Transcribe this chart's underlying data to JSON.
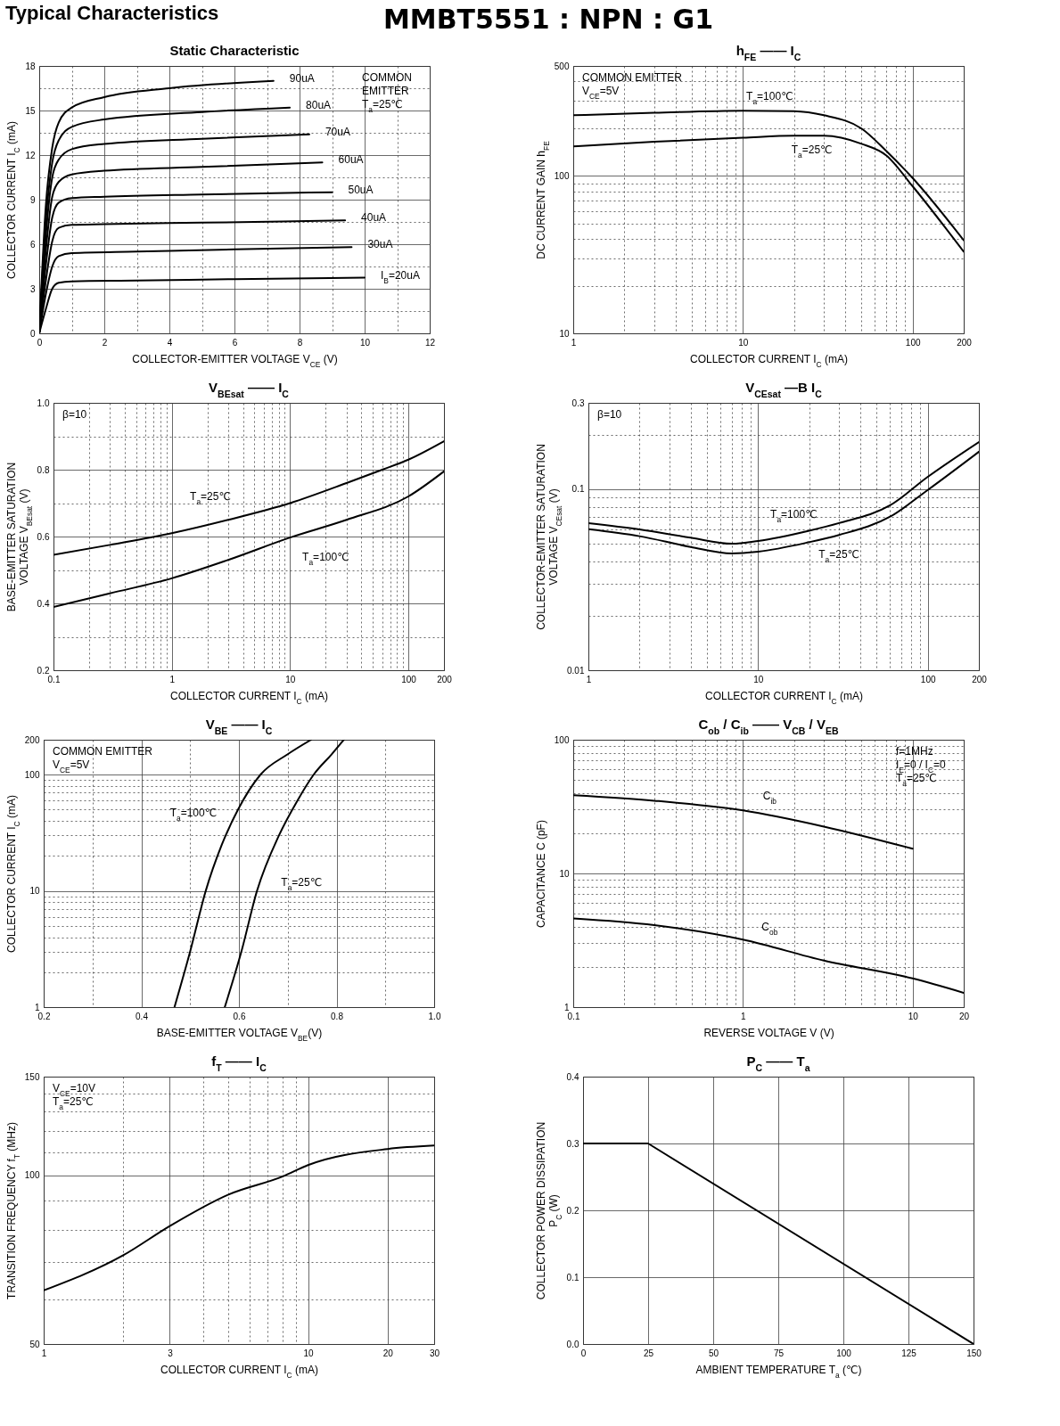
{
  "chart_data": [
    {
      "type": "other",
      "title": "Typical Characteristics",
      "subtitle": "MMBT5551 : NPN : G1"
    },
    {
      "type": "line",
      "title": "Static Characteristic",
      "xlabel": "COLLECTOR-EMITTER VOLTAGE V$_{CE}$ (V)",
      "ylabel": "COLLECTOR CURRENT I$_{C}$ (mA)",
      "xlim": [
        0,
        12
      ],
      "ylim": [
        0,
        18
      ],
      "xticks": [
        0,
        {
          "value": 1,
          "label": null
        },
        2,
        {
          "value": 3,
          "label": null
        },
        4,
        {
          "value": 5,
          "label": null
        },
        6,
        {
          "value": 7,
          "label": null
        },
        8,
        {
          "value": 9,
          "label": null
        },
        10,
        {
          "value": 11,
          "label": null
        },
        12
      ],
      "yticks": [
        0,
        {
          "value": 1.5,
          "label": null
        },
        3,
        {
          "value": 4.5,
          "label": null
        },
        6,
        {
          "value": 7.5,
          "label": null
        },
        9,
        {
          "value": 10.5,
          "label": null
        },
        12,
        {
          "value": 13.5,
          "label": null
        },
        15,
        {
          "value": 16.5,
          "label": null
        },
        18
      ],
      "grid": true,
      "annotations": [
        "COMMON",
        "EMITTER",
        "T$_{a}$=25℃"
      ],
      "series": [
        {
          "name": "I$_{B}$=20uA",
          "color": "#000000",
          "x": [
            0,
            0.2,
            0.4,
            0.6,
            1,
            3,
            6,
            10
          ],
          "values": [
            0,
            1.6,
            3.0,
            3.4,
            3.5,
            3.55,
            3.65,
            3.75
          ]
        },
        {
          "name": "30uA",
          "color": "#000000",
          "x": [
            0,
            0.2,
            0.4,
            0.6,
            1,
            3,
            6,
            9.6
          ],
          "values": [
            0,
            2.6,
            4.5,
            5.2,
            5.4,
            5.5,
            5.65,
            5.8
          ]
        },
        {
          "name": "40uA",
          "color": "#000000",
          "x": [
            0,
            0.2,
            0.4,
            0.6,
            1,
            2,
            5,
            9.4
          ],
          "values": [
            0,
            3.5,
            6.2,
            7.1,
            7.3,
            7.35,
            7.45,
            7.6
          ]
        },
        {
          "name": "50uA",
          "color": "#000000",
          "x": [
            0,
            0.2,
            0.4,
            0.6,
            1,
            2,
            5,
            9
          ],
          "values": [
            0,
            4.5,
            7.8,
            8.8,
            9.1,
            9.2,
            9.35,
            9.5
          ]
        },
        {
          "name": "60uA",
          "color": "#000000",
          "x": [
            0,
            0.2,
            0.4,
            0.6,
            1,
            2,
            5,
            8.7
          ],
          "values": [
            0,
            5.5,
            9.2,
            10.2,
            10.7,
            10.95,
            11.2,
            11.5
          ]
        },
        {
          "name": "70uA",
          "color": "#000000",
          "x": [
            0,
            0.2,
            0.4,
            0.6,
            1,
            2,
            5,
            8.3
          ],
          "values": [
            0,
            6.5,
            10.5,
            11.7,
            12.4,
            12.75,
            13.1,
            13.4
          ]
        },
        {
          "name": "80uA",
          "color": "#000000",
          "x": [
            0,
            0.2,
            0.4,
            0.6,
            1,
            2,
            5,
            7.7
          ],
          "values": [
            0,
            7.5,
            11.5,
            13.0,
            13.9,
            14.4,
            14.9,
            15.2
          ]
        },
        {
          "name": "90uA",
          "color": "#000000",
          "x": [
            0,
            0.2,
            0.4,
            0.6,
            1,
            2,
            4,
            7.2
          ],
          "values": [
            0,
            8.5,
            12.5,
            14.2,
            15.2,
            15.9,
            16.5,
            17.0
          ]
        }
      ]
    },
    {
      "type": "line",
      "title": "h$_{FE}$ —— I$_{C}$",
      "xlabel": "COLLECTOR CURRENT I$_{C}$ (mA)",
      "ylabel": "DC CURRENT GAIN h$_{FE}$",
      "log": "xy",
      "xlim": [
        1,
        200
      ],
      "ylim": [
        10,
        500
      ],
      "xticks": [
        1,
        {
          "value": 2,
          "label": null
        },
        {
          "value": 3,
          "label": null
        },
        {
          "value": 4,
          "label": null
        },
        {
          "value": 5,
          "label": null
        },
        {
          "value": 6,
          "label": null
        },
        {
          "value": 7,
          "label": null
        },
        {
          "value": 8,
          "label": null
        },
        {
          "value": 9,
          "label": null
        },
        10,
        {
          "value": 20,
          "label": null
        },
        {
          "value": 30,
          "label": null
        },
        {
          "value": 40,
          "label": null
        },
        {
          "value": 50,
          "label": null
        },
        {
          "value": 60,
          "label": null
        },
        {
          "value": 70,
          "label": null
        },
        {
          "value": 80,
          "label": null
        },
        {
          "value": 90,
          "label": null
        },
        100,
        200
      ],
      "yticks": [
        10,
        {
          "value": 20,
          "label": null
        },
        {
          "value": 30,
          "label": null
        },
        {
          "value": 40,
          "label": null
        },
        {
          "value": 50,
          "label": null
        },
        {
          "value": 60,
          "label": null
        },
        {
          "value": 70,
          "label": null
        },
        {
          "value": 80,
          "label": null
        },
        {
          "value": 90,
          "label": null
        },
        100,
        {
          "value": 200,
          "label": null
        },
        {
          "value": 300,
          "label": null
        },
        {
          "value": 400,
          "label": null
        },
        500
      ],
      "grid": true,
      "annotations": [
        "COMMON EMITTER",
        "V$_{CE}$=5V"
      ],
      "series": [
        {
          "name": "T$_{a}$=100℃",
          "color": "#000000",
          "x": [
            1,
            3,
            10,
            20,
            30,
            50,
            70,
            100,
            200
          ],
          "values": [
            243,
            252,
            260,
            258,
            243,
            200,
            144,
            97,
            39
          ]
        },
        {
          "name": "T$_{a}$=25℃",
          "color": "#000000",
          "x": [
            1,
            3,
            10,
            20,
            30,
            50,
            70,
            100,
            200
          ],
          "values": [
            154,
            165,
            175,
            180,
            180,
            160,
            135,
            86,
            33
          ]
        }
      ]
    },
    {
      "type": "line",
      "title": "V$_{BEsat}$ —— I$_{C}$",
      "xlabel": "COLLECTOR CURRENT I$_{C}$ (mA)",
      "ylabel": "BASE-EMITTER SATURATION\nVOLTAGE V$_{BEsat}$ (V)",
      "log": "x",
      "xlim": [
        0.1,
        200
      ],
      "ylim": [
        0.2,
        1.0
      ],
      "xticks": [
        0.1,
        {
          "value": 0.2,
          "label": null
        },
        {
          "value": 0.3,
          "label": null
        },
        {
          "value": 0.4,
          "label": null
        },
        {
          "value": 0.5,
          "label": null
        },
        {
          "value": 0.6,
          "label": null
        },
        {
          "value": 0.7,
          "label": null
        },
        {
          "value": 0.8,
          "label": null
        },
        {
          "value": 0.9,
          "label": null
        },
        1,
        {
          "value": 2,
          "label": null
        },
        {
          "value": 3,
          "label": null
        },
        {
          "value": 4,
          "label": null
        },
        {
          "value": 5,
          "label": null
        },
        {
          "value": 6,
          "label": null
        },
        {
          "value": 7,
          "label": null
        },
        {
          "value": 8,
          "label": null
        },
        {
          "value": 9,
          "label": null
        },
        10,
        {
          "value": 20,
          "label": null
        },
        {
          "value": 30,
          "label": null
        },
        {
          "value": 40,
          "label": null
        },
        {
          "value": 50,
          "label": null
        },
        {
          "value": 60,
          "label": null
        },
        {
          "value": 70,
          "label": null
        },
        {
          "value": 80,
          "label": null
        },
        {
          "value": 90,
          "label": null
        },
        100,
        200
      ],
      "yticks": [
        0.2,
        {
          "value": 0.3,
          "label": null
        },
        0.4,
        {
          "value": 0.5,
          "label": null
        },
        0.6,
        {
          "value": 0.7,
          "label": null
        },
        0.8,
        {
          "value": 0.9,
          "label": null
        },
        {
          "value": 1,
          "label": "1.0"
        }
      ],
      "grid": true,
      "annotations": [
        "β=10"
      ],
      "series": [
        {
          "name": "T$_{a}$=25℃",
          "color": "#000000",
          "x": [
            0.1,
            0.3,
            1,
            3,
            10,
            30,
            60,
            100,
            200
          ],
          "values": [
            0.545,
            0.575,
            0.61,
            0.65,
            0.7,
            0.76,
            0.8,
            0.83,
            0.885
          ]
        },
        {
          "name": "T$_{a}$=100℃",
          "color": "#000000",
          "x": [
            0.1,
            0.3,
            1,
            3,
            10,
            30,
            100,
            200
          ],
          "values": [
            0.389,
            0.43,
            0.475,
            0.53,
            0.597,
            0.65,
            0.72,
            0.795
          ]
        }
      ]
    },
    {
      "type": "line",
      "title": "V$_{CEsat}$ —B I$_{C}$",
      "xlabel": "COLLECTOR CURRENT I$_{C}$ (mA)",
      "ylabel": "COLLECTOR-EMITTER SATURATION\nVOLTAGE V$_{CEsat}$ (V)",
      "log": "xy",
      "xlim": [
        1,
        200
      ],
      "ylim": [
        0.01,
        0.3
      ],
      "xticks": [
        1,
        {
          "value": 2,
          "label": null
        },
        {
          "value": 3,
          "label": null
        },
        {
          "value": 4,
          "label": null
        },
        {
          "value": 5,
          "label": null
        },
        {
          "value": 6,
          "label": null
        },
        {
          "value": 7,
          "label": null
        },
        {
          "value": 8,
          "label": null
        },
        {
          "value": 9,
          "label": null
        },
        10,
        {
          "value": 20,
          "label": null
        },
        {
          "value": 30,
          "label": null
        },
        {
          "value": 40,
          "label": null
        },
        {
          "value": 50,
          "label": null
        },
        {
          "value": 60,
          "label": null
        },
        {
          "value": 70,
          "label": null
        },
        {
          "value": 80,
          "label": null
        },
        {
          "value": 90,
          "label": null
        },
        100,
        200
      ],
      "yticks": [
        0.01,
        {
          "value": 0.02,
          "label": null
        },
        {
          "value": 0.03,
          "label": null
        },
        {
          "value": 0.04,
          "label": null
        },
        {
          "value": 0.05,
          "label": null
        },
        {
          "value": 0.06,
          "label": null
        },
        {
          "value": 0.07,
          "label": null
        },
        {
          "value": 0.08,
          "label": null
        },
        {
          "value": 0.09,
          "label": null
        },
        0.1,
        {
          "value": 0.2,
          "label": null
        },
        0.3
      ],
      "grid": true,
      "annotations": [
        "β=10"
      ],
      "series": [
        {
          "name": "T$_{a}$=100℃",
          "color": "#000000",
          "x": [
            1,
            2,
            4,
            7,
            10,
            20,
            30,
            60,
            100,
            200
          ],
          "values": [
            0.065,
            0.06,
            0.054,
            0.05,
            0.0518,
            0.059,
            0.065,
            0.0815,
            0.117,
            0.182
          ]
        },
        {
          "name": "T$_{a}$=25℃",
          "color": "#000000",
          "x": [
            1,
            2,
            4,
            7,
            10,
            20,
            30,
            60,
            100,
            200
          ],
          "values": [
            0.0601,
            0.055,
            0.048,
            0.0442,
            0.0452,
            0.051,
            0.0559,
            0.0705,
            0.0991,
            0.161
          ]
        }
      ]
    },
    {
      "type": "line",
      "title": "V$_{BE}$ —— I$_{C}$",
      "xlabel": "BASE-EMITTER VOLTAGE V$_{BE}$(V)",
      "ylabel": "COLLECTOR CURRENT I$_{C}$ (mA)",
      "log": "y",
      "xlim": [
        0.2,
        1.0
      ],
      "ylim": [
        1,
        200
      ],
      "xticks": [
        0.2,
        {
          "value": 0.3,
          "label": null
        },
        0.4,
        {
          "value": 0.5,
          "label": null
        },
        0.6,
        {
          "value": 0.7,
          "label": null
        },
        0.8,
        {
          "value": 0.9,
          "label": null
        },
        {
          "value": 1,
          "label": "1.0"
        }
      ],
      "yticks": [
        1,
        {
          "value": 2,
          "label": null
        },
        {
          "value": 3,
          "label": null
        },
        {
          "value": 4,
          "label": null
        },
        {
          "value": 5,
          "label": null
        },
        {
          "value": 6,
          "label": null
        },
        {
          "value": 7,
          "label": null
        },
        {
          "value": 8,
          "label": null
        },
        {
          "value": 9,
          "label": null
        },
        10,
        {
          "value": 20,
          "label": null
        },
        {
          "value": 30,
          "label": null
        },
        {
          "value": 40,
          "label": null
        },
        {
          "value": 50,
          "label": null
        },
        {
          "value": 60,
          "label": null
        },
        {
          "value": 70,
          "label": null
        },
        {
          "value": 80,
          "label": null
        },
        {
          "value": 90,
          "label": null
        },
        100,
        200
      ],
      "grid": true,
      "annotations": [
        "COMMON EMITTER",
        "V$_{CE}$=5V"
      ],
      "series": [
        {
          "name": "T$_{a}$=100℃",
          "color": "#000000",
          "x": [
            0.468,
            0.5,
            0.532,
            0.565,
            0.598,
            0.644,
            0.7,
            0.748
          ],
          "values": [
            1,
            3,
            10,
            25,
            50,
            100,
            150,
            200
          ]
        },
        {
          "name": "T$_{a}$=25℃",
          "color": "#000000",
          "x": [
            0.571,
            0.605,
            0.637,
            0.682,
            0.72,
            0.753,
            0.79,
            0.815
          ],
          "values": [
            1,
            3,
            10,
            30,
            60,
            100,
            150,
            200
          ]
        }
      ]
    },
    {
      "type": "line",
      "title": "C$_{ob}$ / C$_{ib}$ —— V$_{CB}$ / V$_{EB}$",
      "xlabel": "REVERSE VOLTAGE V (V)",
      "ylabel": "CAPACITANCE C (pF)",
      "log": "xy",
      "xlim": [
        0.1,
        20
      ],
      "ylim": [
        1,
        100
      ],
      "xticks": [
        0.1,
        {
          "value": 0.2,
          "label": null
        },
        {
          "value": 0.3,
          "label": null
        },
        {
          "value": 0.4,
          "label": null
        },
        {
          "value": 0.5,
          "label": null
        },
        {
          "value": 0.6,
          "label": null
        },
        {
          "value": 0.7,
          "label": null
        },
        {
          "value": 0.8,
          "label": null
        },
        {
          "value": 0.9,
          "label": null
        },
        1,
        {
          "value": 2,
          "label": null
        },
        {
          "value": 3,
          "label": null
        },
        {
          "value": 4,
          "label": null
        },
        {
          "value": 5,
          "label": null
        },
        {
          "value": 6,
          "label": null
        },
        {
          "value": 7,
          "label": null
        },
        {
          "value": 8,
          "label": null
        },
        {
          "value": 9,
          "label": null
        },
        10,
        20
      ],
      "yticks": [
        1,
        {
          "value": 2,
          "label": null
        },
        {
          "value": 3,
          "label": null
        },
        {
          "value": 4,
          "label": null
        },
        {
          "value": 5,
          "label": null
        },
        {
          "value": 6,
          "label": null
        },
        {
          "value": 7,
          "label": null
        },
        {
          "value": 8,
          "label": null
        },
        {
          "value": 9,
          "label": null
        },
        10,
        {
          "value": 20,
          "label": null
        },
        {
          "value": 30,
          "label": null
        },
        {
          "value": 40,
          "label": null
        },
        {
          "value": 50,
          "label": null
        },
        {
          "value": 60,
          "label": null
        },
        {
          "value": 70,
          "label": null
        },
        {
          "value": 80,
          "label": null
        },
        {
          "value": 90,
          "label": null
        },
        100
      ],
      "grid": true,
      "annotations": [
        "f=1MHz",
        "I$_{E}$=0 / I$_{C}$=0",
        "T$_{a}$=25℃"
      ],
      "series": [
        {
          "name": "C$_{ib}$",
          "color": "#000000",
          "x": [
            0.1,
            0.3,
            1,
            3,
            10
          ],
          "values": [
            38.5,
            35,
            29.6,
            22.4,
            15.3
          ]
        },
        {
          "name": "C$_{ob}$",
          "color": "#000000",
          "x": [
            0.1,
            0.3,
            1,
            3,
            10,
            20
          ],
          "values": [
            4.6,
            4.1,
            3.2,
            2.23,
            1.64,
            1.28
          ]
        }
      ]
    },
    {
      "type": "line",
      "title": "f$_{T}$ —— I$_{C}$",
      "xlabel": "COLLECTOR CURRENT I$_{C}$ (mA)",
      "ylabel": "TRANSITION FREQUENCY f$_{T}$ (MHz)",
      "log": "xy",
      "xlim": [
        1,
        30
      ],
      "ylim": [
        50,
        150
      ],
      "xticks": [
        1,
        {
          "value": 2,
          "label": null
        },
        3,
        {
          "value": 4,
          "label": null
        },
        {
          "value": 5,
          "label": null
        },
        {
          "value": 6,
          "label": null
        },
        {
          "value": 7,
          "label": null
        },
        {
          "value": 8,
          "label": null
        },
        {
          "value": 9,
          "label": null
        },
        10,
        20,
        30
      ],
      "yticks": [
        50,
        {
          "value": 60,
          "label": null
        },
        {
          "value": 70,
          "label": null
        },
        {
          "value": 80,
          "label": null
        },
        {
          "value": 90,
          "label": null
        },
        100,
        {
          "value": 110,
          "label": null
        },
        {
          "value": 120,
          "label": null
        },
        {
          "value": 130,
          "label": null
        },
        {
          "value": 140,
          "label": null
        },
        150
      ],
      "grid": true,
      "annotations": [
        "V$_{CE}$=10V",
        "T$_{a}$=25℃"
      ],
      "series": [
        {
          "color": "#000000",
          "x": [
            1,
            2,
            3,
            5,
            8,
            10,
            20,
            30
          ],
          "values": [
            62.3,
            72,
            81.2,
            92.4,
            99.5,
            104.3,
            111.4,
            113
          ]
        }
      ]
    },
    {
      "type": "line",
      "title": "P$_{C}$ —— T$_{a}$",
      "xlabel": "AMBIENT TEMPERATURE T$_{a}$ (℃)",
      "ylabel": "COLLECTOR POWER DISSIPATION\nP$_{C}$ (W)",
      "xlim": [
        0,
        150
      ],
      "ylim": [
        0,
        0.4
      ],
      "xticks": [
        0,
        25,
        50,
        75,
        100,
        125,
        150
      ],
      "yticks": [
        {
          "value": 0,
          "label": "0.0"
        },
        0.1,
        0.2,
        0.3,
        0.4
      ],
      "grid": true,
      "series": [
        {
          "color": "#000000",
          "x": [
            0,
            25,
            150
          ],
          "values": [
            0.3,
            0.3,
            0
          ]
        }
      ]
    }
  ]
}
